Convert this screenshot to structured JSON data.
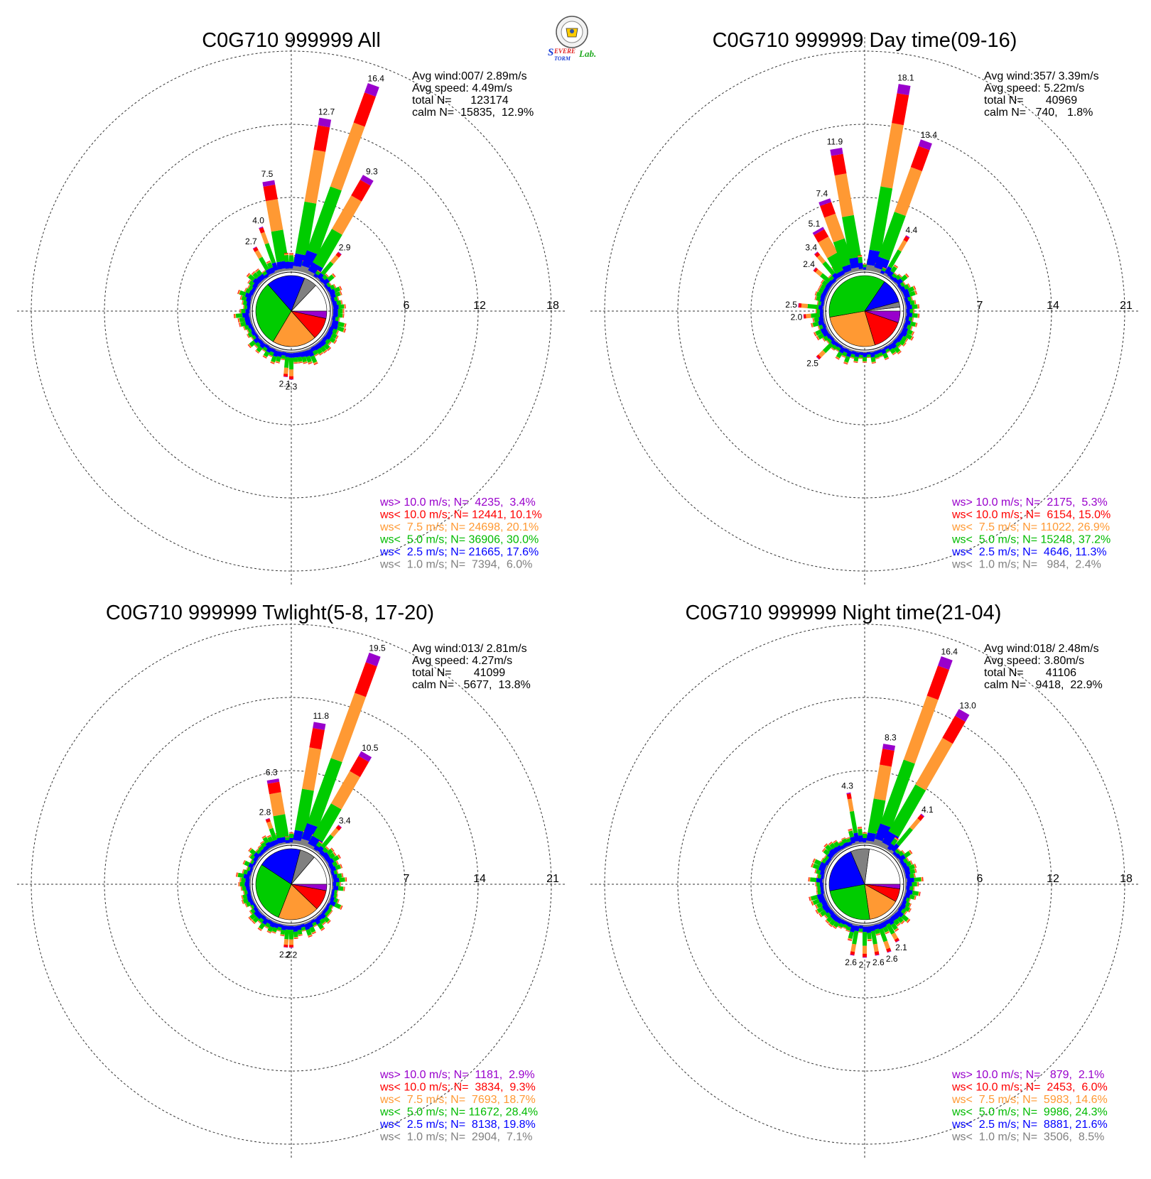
{
  "logo": {
    "text": "SEVERE STORM Lab."
  },
  "colors": {
    "calm": "#ffffff",
    "ws_lt_1": "#808080",
    "ws_lt_2_5": "#0000ff",
    "ws_lt_5": "#00cc00",
    "ws_lt_7_5": "#ff9933",
    "ws_lt_10": "#ff0000",
    "ws_gt_10": "#9900cc"
  },
  "chart_data": [
    {
      "type": "wind-rose",
      "title": "C0G710 999999 All",
      "stats": [
        "Avg wind:007/ 2.89m/s",
        "Avg speed: 4.49m/s",
        "total N=      123174",
        "calm N=  15835,  12.9%"
      ],
      "ring_labels": [
        "6",
        "12",
        "18"
      ],
      "rmax": 18,
      "pie": [
        12.9,
        3.4,
        10.1,
        20.1,
        30.0,
        17.6,
        6.0
      ],
      "bars": [
        {
          "dir": 350,
          "value": 7.5,
          "label": "7.5"
        },
        {
          "dir": 10,
          "value": 12.7,
          "label": "12.7"
        },
        {
          "dir": 20,
          "value": 16.4,
          "label": "16.4"
        },
        {
          "dir": 30,
          "value": 9.3,
          "label": "9.3"
        },
        {
          "dir": 40,
          "value": 2.9,
          "label": "2.9"
        },
        {
          "dir": 340,
          "value": 4.0,
          "label": "4.0"
        },
        {
          "dir": 330,
          "value": 2.7,
          "label": "2.7"
        },
        {
          "dir": 180,
          "value": 2.3,
          "label": "2.3"
        },
        {
          "dir": 185,
          "value": 2.1,
          "label": "2.1"
        }
      ],
      "legend": [
        {
          "text": "ws> 10.0 m/s; N=  4235,  3.4%",
          "color": "#9900cc"
        },
        {
          "text": "ws< 10.0 m/s; N= 12441, 10.1%",
          "color": "#ff0000"
        },
        {
          "text": "ws<  7.5 m/s; N= 24698, 20.1%",
          "color": "#ff9933"
        },
        {
          "text": "ws<  5.0 m/s; N= 36906, 30.0%",
          "color": "#00bb00"
        },
        {
          "text": "ws<  2.5 m/s; N= 21665, 17.6%",
          "color": "#0000ff"
        },
        {
          "text": "ws<  1.0 m/s; N=  7394,  6.0%",
          "color": "#808080"
        }
      ]
    },
    {
      "type": "wind-rose",
      "title": "C0G710 999999 Day time(09-16)",
      "stats": [
        "Avg wind:357/ 3.39m/s",
        "Avg speed: 5.22m/s",
        "total N=       40969",
        "calm N=   740,   1.8%"
      ],
      "ring_labels": [
        "7",
        "14",
        "21"
      ],
      "rmax": 21,
      "pie": [
        1.8,
        5.3,
        15.0,
        26.9,
        37.2,
        11.3,
        2.4
      ],
      "bars": [
        {
          "dir": 350,
          "value": 11.9,
          "label": "11.9"
        },
        {
          "dir": 10,
          "value": 18.1,
          "label": "18.1"
        },
        {
          "dir": 20,
          "value": 13.4,
          "label": "13.4"
        },
        {
          "dir": 30,
          "value": 4.4,
          "label": "4.4"
        },
        {
          "dir": 340,
          "value": 7.4,
          "label": "7.4"
        },
        {
          "dir": 330,
          "value": 5.1,
          "label": "5.1"
        },
        {
          "dir": 320,
          "value": 3.4,
          "label": "3.4"
        },
        {
          "dir": 310,
          "value": 2.4,
          "label": "2.4"
        },
        {
          "dir": 275,
          "value": 2.5,
          "label": "2.5"
        },
        {
          "dir": 265,
          "value": 2.0,
          "label": "2.0"
        },
        {
          "dir": 225,
          "value": 2.5,
          "label": "2.5"
        },
        {
          "dir": 218,
          "value": 2.0,
          "label": "2.0"
        }
      ],
      "legend": [
        {
          "text": "ws> 10.0 m/s; N=  2175,  5.3%",
          "color": "#9900cc"
        },
        {
          "text": "ws< 10.0 m/s; N=  6154, 15.0%",
          "color": "#ff0000"
        },
        {
          "text": "ws<  7.5 m/s; N= 11022, 26.9%",
          "color": "#ff9933"
        },
        {
          "text": "ws<  5.0 m/s; N= 15248, 37.2%",
          "color": "#00bb00"
        },
        {
          "text": "ws<  2.5 m/s; N=  4646, 11.3%",
          "color": "#0000ff"
        },
        {
          "text": "ws<  1.0 m/s; N=   984,  2.4%",
          "color": "#808080"
        }
      ]
    },
    {
      "type": "wind-rose",
      "title": "C0G710 999999 Twlight(5-8, 17-20)",
      "stats": [
        "Avg wind:013/ 2.81m/s",
        "Avg speed: 4.27m/s",
        "total N=       41099",
        "calm N=   5677,  13.8%"
      ],
      "ring_labels": [
        "7",
        "14",
        "21"
      ],
      "rmax": 21,
      "pie": [
        13.8,
        2.9,
        9.3,
        18.7,
        28.4,
        19.8,
        7.1
      ],
      "bars": [
        {
          "dir": 350,
          "value": 6.3,
          "label": "6.3"
        },
        {
          "dir": 10,
          "value": 11.8,
          "label": "11.8"
        },
        {
          "dir": 20,
          "value": 19.5,
          "label": "19.5"
        },
        {
          "dir": 30,
          "value": 10.5,
          "label": "10.5"
        },
        {
          "dir": 40,
          "value": 3.4,
          "label": "3.4"
        },
        {
          "dir": 340,
          "value": 2.8,
          "label": "2.8"
        },
        {
          "dir": 180,
          "value": 2.2,
          "label": "2.2"
        },
        {
          "dir": 185,
          "value": 2.2,
          "label": "2.2"
        }
      ],
      "legend": [
        {
          "text": "ws> 10.0 m/s; N=  1181,  2.9%",
          "color": "#9900cc"
        },
        {
          "text": "ws< 10.0 m/s; N=  3834,  9.3%",
          "color": "#ff0000"
        },
        {
          "text": "ws<  7.5 m/s; N=  7693, 18.7%",
          "color": "#ff9933"
        },
        {
          "text": "ws<  5.0 m/s; N= 11672, 28.4%",
          "color": "#00bb00"
        },
        {
          "text": "ws<  2.5 m/s; N=  8138, 19.8%",
          "color": "#0000ff"
        },
        {
          "text": "ws<  1.0 m/s; N=  2904,  7.1%",
          "color": "#808080"
        }
      ]
    },
    {
      "type": "wind-rose",
      "title": "C0G710 999999 Night time(21-04)",
      "stats": [
        "Avg wind:018/ 2.48m/s",
        "Avg speed: 3.80m/s",
        "total N=       41106",
        "calm N=   9418,  22.9%"
      ],
      "ring_labels": [
        "6",
        "12",
        "18"
      ],
      "rmax": 18,
      "pie": [
        22.9,
        2.1,
        6.0,
        14.6,
        24.3,
        21.6,
        8.5
      ],
      "bars": [
        {
          "dir": 350,
          "value": 4.3,
          "label": "4.3"
        },
        {
          "dir": 10,
          "value": 8.3,
          "label": "8.3"
        },
        {
          "dir": 20,
          "value": 16.4,
          "label": "16.4"
        },
        {
          "dir": 30,
          "value": 13.0,
          "label": "13.0"
        },
        {
          "dir": 40,
          "value": 4.1,
          "label": "4.1"
        },
        {
          "dir": 150,
          "value": 2.1,
          "label": "2.1"
        },
        {
          "dir": 160,
          "value": 2.6,
          "label": "2.6"
        },
        {
          "dir": 170,
          "value": 2.6,
          "label": "2.6"
        },
        {
          "dir": 180,
          "value": 2.7,
          "label": "2.7"
        },
        {
          "dir": 190,
          "value": 2.6,
          "label": "2.6"
        }
      ],
      "legend": [
        {
          "text": "ws> 10.0 m/s; N=   879,  2.1%",
          "color": "#9900cc"
        },
        {
          "text": "ws< 10.0 m/s; N=  2453,  6.0%",
          "color": "#ff0000"
        },
        {
          "text": "ws<  7.5 m/s; N=  5983, 14.6%",
          "color": "#ff9933"
        },
        {
          "text": "ws<  5.0 m/s; N=  9986, 24.3%",
          "color": "#00bb00"
        },
        {
          "text": "ws<  2.5 m/s; N=  8881, 21.6%",
          "color": "#0000ff"
        },
        {
          "text": "ws<  1.0 m/s; N=  3506,  8.5%",
          "color": "#808080"
        }
      ]
    }
  ]
}
